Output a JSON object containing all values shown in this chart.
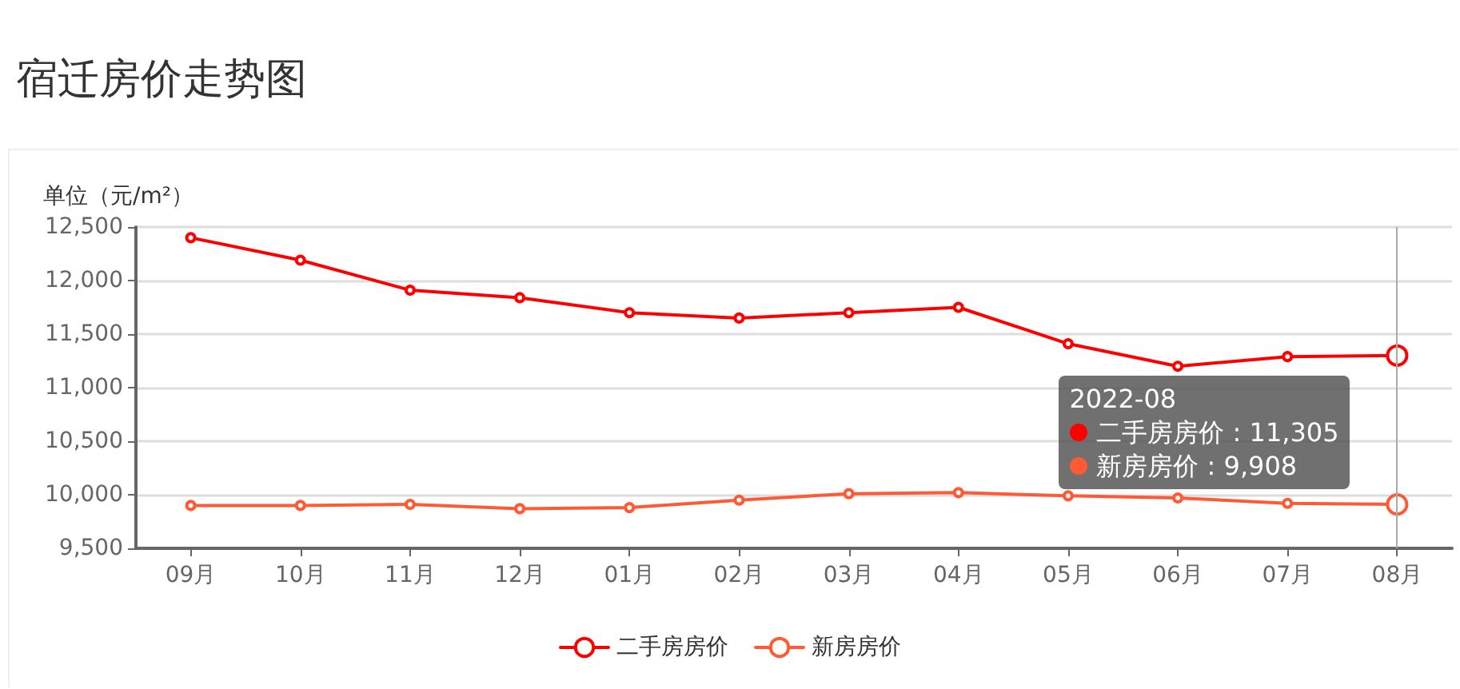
{
  "chart_data": {
    "type": "line",
    "title": "宿迁房价走势图",
    "ylabel": "单位（元/m²）",
    "categories": [
      "09月",
      "10月",
      "11月",
      "12月",
      "01月",
      "02月",
      "03月",
      "04月",
      "05月",
      "06月",
      "07月",
      "08月"
    ],
    "series": [
      {
        "name": "二手房房价",
        "color": "#ff0000",
        "values": [
          12400,
          12190,
          11910,
          11840,
          11700,
          11650,
          11700,
          11750,
          11410,
          11200,
          11290,
          11300
        ]
      },
      {
        "name": "新房房价",
        "color": "#ff5a36",
        "values": [
          9900,
          9900,
          9910,
          9870,
          9880,
          9950,
          10010,
          10020,
          9990,
          9970,
          9920,
          9910
        ]
      }
    ],
    "ylim": [
      9500,
      12500
    ],
    "yticks": [
      {
        "value": 9500,
        "label": "9,500"
      },
      {
        "value": 10000,
        "label": "10,000"
      },
      {
        "value": 10500,
        "label": "10,500"
      },
      {
        "value": 11000,
        "label": "11,000"
      },
      {
        "value": 11500,
        "label": "11,500"
      },
      {
        "value": 12000,
        "label": "12,000"
      },
      {
        "value": 12500,
        "label": "12,500"
      }
    ],
    "grid": "y",
    "legend": "bottom",
    "marker": "circle",
    "line_style": "solid",
    "ref_lines": [
      {
        "axis": "x",
        "value": "08月",
        "color": "#aaaaaa"
      }
    ],
    "annotations": [
      "2022-08",
      "二手房房价 : 11,305",
      "新房房价 : 9,908"
    ]
  }
}
